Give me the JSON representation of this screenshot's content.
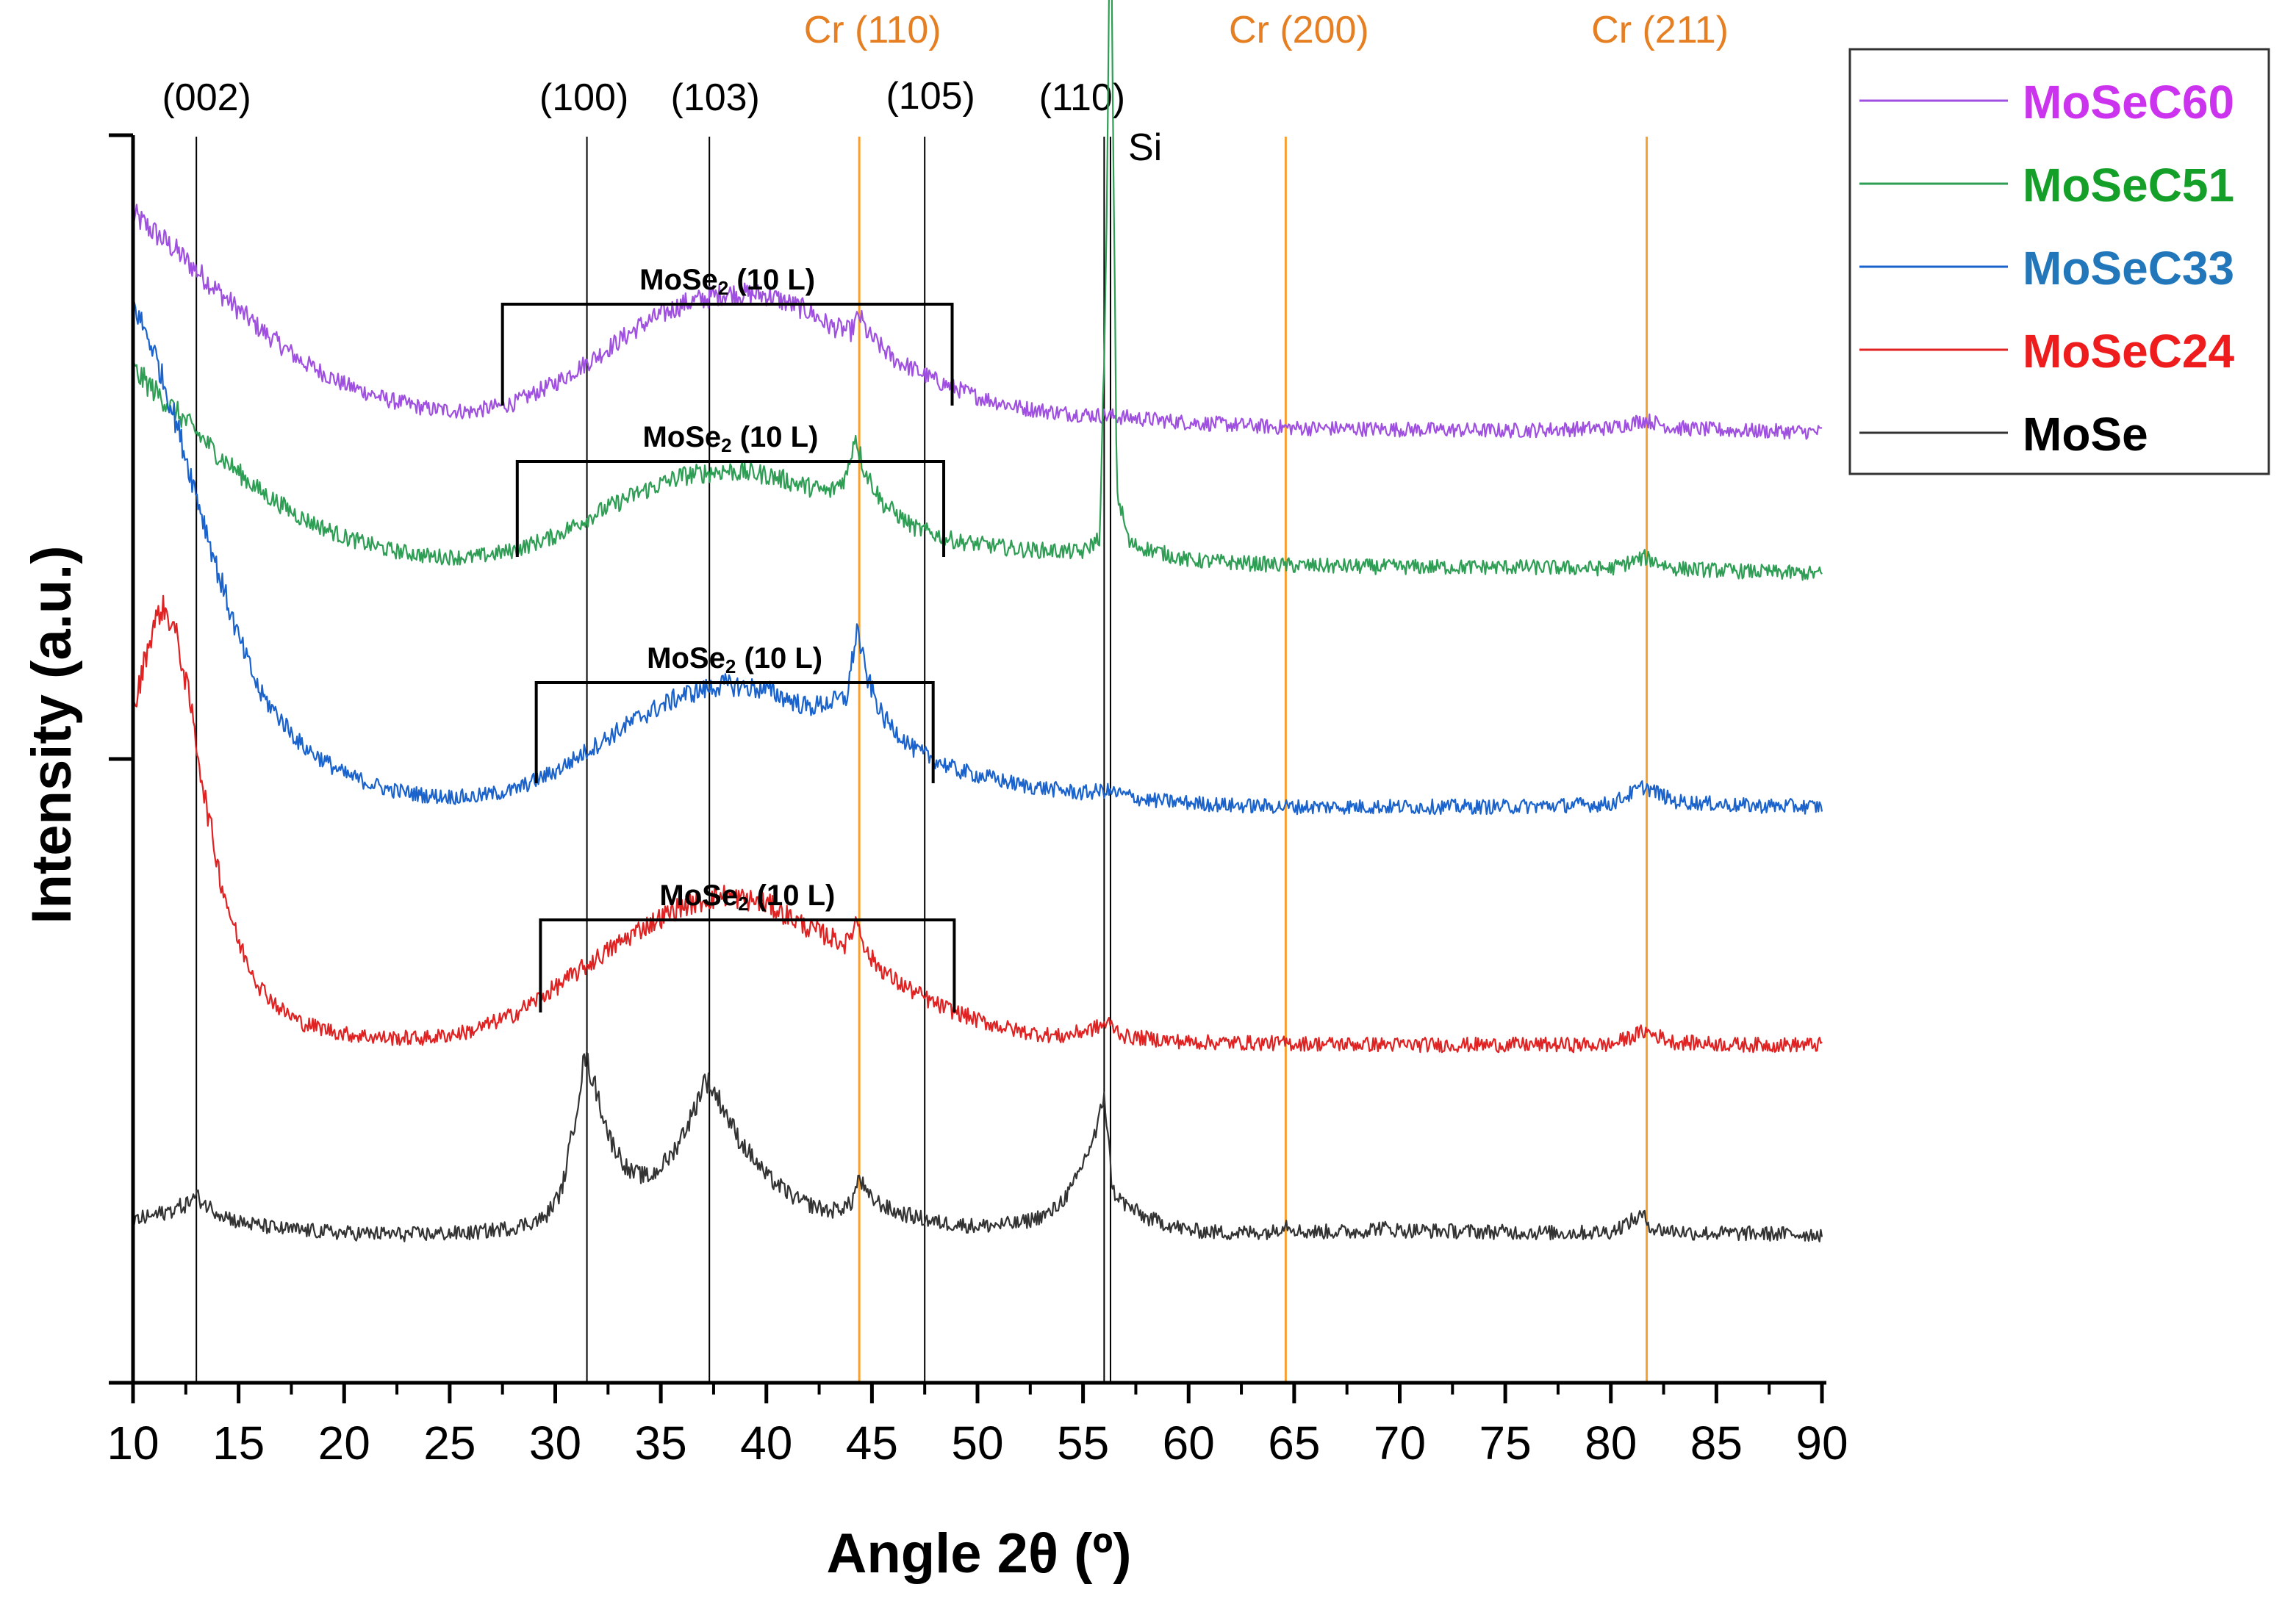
{
  "chart_data": {
    "type": "line",
    "title": "",
    "xlabel": "Angle 2θ (º)",
    "ylabel": "Intensity (a.u.)",
    "xlim": [
      10,
      90
    ],
    "x_ticks": [
      10,
      15,
      20,
      25,
      30,
      35,
      40,
      45,
      50,
      55,
      60,
      65,
      70,
      75,
      80,
      85,
      90
    ],
    "grid": false,
    "legend_position": "top-right outside",
    "colors": {
      "reference_line": "#000000",
      "cr_line": "#f5a030",
      "cr_label": "#e67e22"
    },
    "series": [
      {
        "name": "MoSeC60",
        "color": "#a050e0",
        "legend_color": "#cc33ee",
        "offset": 4.0,
        "points": [
          [
            10,
            1.6
          ],
          [
            12,
            1.34
          ],
          [
            14,
            1.04
          ],
          [
            16,
            0.76
          ],
          [
            18,
            0.52
          ],
          [
            20,
            0.35
          ],
          [
            22,
            0.24
          ],
          [
            24,
            0.17
          ],
          [
            26,
            0.15
          ],
          [
            28,
            0.21
          ],
          [
            30,
            0.36
          ],
          [
            32,
            0.56
          ],
          [
            34,
            0.78
          ],
          [
            36,
            0.94
          ],
          [
            38,
            1.02
          ],
          [
            40,
            1.01
          ],
          [
            42,
            0.89
          ],
          [
            43,
            0.78
          ],
          [
            44,
            0.74
          ],
          [
            44.4,
            0.86
          ],
          [
            44.8,
            0.72
          ],
          [
            46,
            0.54
          ],
          [
            48,
            0.38
          ],
          [
            50,
            0.26
          ],
          [
            52,
            0.18
          ],
          [
            54,
            0.14
          ],
          [
            56,
            0.12
          ],
          [
            60,
            0.07
          ],
          [
            65,
            0.03
          ],
          [
            70,
            0.02
          ],
          [
            75,
            0.01
          ],
          [
            80,
            0.03
          ],
          [
            81.6,
            0.09
          ],
          [
            83,
            0.03
          ],
          [
            86,
            0.01
          ],
          [
            90,
            0.0
          ]
        ]
      },
      {
        "name": "MoSeC51",
        "color": "#2e9e55",
        "legend_color": "#14a028",
        "offset": 3.0,
        "points": [
          [
            10,
            1.5
          ],
          [
            12,
            1.2
          ],
          [
            14,
            0.88
          ],
          [
            16,
            0.61
          ],
          [
            18,
            0.41
          ],
          [
            20,
            0.27
          ],
          [
            22,
            0.18
          ],
          [
            24,
            0.13
          ],
          [
            26,
            0.12
          ],
          [
            28,
            0.17
          ],
          [
            30,
            0.28
          ],
          [
            32,
            0.45
          ],
          [
            34,
            0.6
          ],
          [
            36,
            0.72
          ],
          [
            38,
            0.76
          ],
          [
            40,
            0.73
          ],
          [
            42,
            0.64
          ],
          [
            43,
            0.6
          ],
          [
            43.8,
            0.72
          ],
          [
            44.2,
            1.03
          ],
          [
            44.6,
            0.78
          ],
          [
            45.5,
            0.52
          ],
          [
            47,
            0.34
          ],
          [
            49,
            0.24
          ],
          [
            52,
            0.18
          ],
          [
            55,
            0.16
          ],
          [
            55.8,
            0.27
          ],
          [
            56.1,
            2.3
          ],
          [
            56.3,
            5.2
          ],
          [
            56.6,
            0.6
          ],
          [
            57.2,
            0.22
          ],
          [
            60,
            0.1
          ],
          [
            65,
            0.06
          ],
          [
            70,
            0.05
          ],
          [
            75,
            0.05
          ],
          [
            80,
            0.04
          ],
          [
            81.6,
            0.12
          ],
          [
            83,
            0.04
          ],
          [
            86,
            0.02
          ],
          [
            90,
            0.0
          ]
        ]
      },
      {
        "name": "MoSeC33",
        "color": "#1a62cc",
        "legend_color": "#2277bb",
        "offset": 2.0,
        "points": [
          [
            10,
            3.7
          ],
          [
            11,
            3.35
          ],
          [
            12,
            2.85
          ],
          [
            13,
            2.3
          ],
          [
            14,
            1.74
          ],
          [
            15,
            1.24
          ],
          [
            16,
            0.84
          ],
          [
            18,
            0.45
          ],
          [
            20,
            0.24
          ],
          [
            22,
            0.13
          ],
          [
            24,
            0.08
          ],
          [
            26,
            0.07
          ],
          [
            28,
            0.12
          ],
          [
            30,
            0.26
          ],
          [
            32,
            0.46
          ],
          [
            34,
            0.66
          ],
          [
            36,
            0.82
          ],
          [
            38,
            0.9
          ],
          [
            40,
            0.86
          ],
          [
            42,
            0.73
          ],
          [
            43.8,
            0.8
          ],
          [
            44.3,
            1.32
          ],
          [
            44.7,
            0.98
          ],
          [
            45.5,
            0.66
          ],
          [
            47,
            0.42
          ],
          [
            49,
            0.27
          ],
          [
            52,
            0.16
          ],
          [
            55,
            0.1
          ],
          [
            56,
            0.12
          ],
          [
            58,
            0.05
          ],
          [
            62,
            0.01
          ],
          [
            65,
            0.0
          ],
          [
            70,
            0.0
          ],
          [
            75,
            0.0
          ],
          [
            80,
            0.02
          ],
          [
            81.6,
            0.15
          ],
          [
            83,
            0.04
          ],
          [
            86,
            0.01
          ],
          [
            90,
            0.0
          ]
        ]
      },
      {
        "name": "MoSeC24",
        "color": "#e02222",
        "legend_color": "#ee1c1c",
        "offset": 1.0,
        "points": [
          [
            10,
            2.4
          ],
          [
            10.5,
            2.8
          ],
          [
            11,
            3.1
          ],
          [
            11.4,
            3.22
          ],
          [
            12,
            3.05
          ],
          [
            12.7,
            2.52
          ],
          [
            13.4,
            1.82
          ],
          [
            14.2,
            1.18
          ],
          [
            15,
            0.75
          ],
          [
            16,
            0.43
          ],
          [
            17,
            0.26
          ],
          [
            18,
            0.16
          ],
          [
            20,
            0.08
          ],
          [
            22,
            0.05
          ],
          [
            24,
            0.05
          ],
          [
            26,
            0.1
          ],
          [
            28,
            0.22
          ],
          [
            30,
            0.42
          ],
          [
            32,
            0.64
          ],
          [
            34,
            0.85
          ],
          [
            36,
            1.02
          ],
          [
            38,
            1.1
          ],
          [
            40,
            1.04
          ],
          [
            42,
            0.86
          ],
          [
            43.8,
            0.74
          ],
          [
            44.3,
            0.93
          ],
          [
            44.8,
            0.66
          ],
          [
            46,
            0.48
          ],
          [
            48,
            0.3
          ],
          [
            50,
            0.18
          ],
          [
            52,
            0.1
          ],
          [
            54,
            0.06
          ],
          [
            55.5,
            0.12
          ],
          [
            56.2,
            0.16
          ],
          [
            57,
            0.06
          ],
          [
            60,
            0.02
          ],
          [
            65,
            0.01
          ],
          [
            70,
            0.0
          ],
          [
            75,
            0.0
          ],
          [
            80,
            0.0
          ],
          [
            81.6,
            0.1
          ],
          [
            83,
            0.02
          ],
          [
            86,
            0.0
          ],
          [
            90,
            0.0
          ]
        ]
      },
      {
        "name": "MoSe",
        "color": "#333333",
        "legend_color": "#000000",
        "offset": 0.0,
        "points": [
          [
            10,
            0.1
          ],
          [
            11.5,
            0.16
          ],
          [
            12.5,
            0.22
          ],
          [
            13,
            0.28
          ],
          [
            13.6,
            0.2
          ],
          [
            15,
            0.09
          ],
          [
            17,
            0.04
          ],
          [
            20,
            0.01
          ],
          [
            23,
            0.0
          ],
          [
            26,
            0.01
          ],
          [
            28,
            0.05
          ],
          [
            29.5,
            0.12
          ],
          [
            30.3,
            0.32
          ],
          [
            30.9,
            0.82
          ],
          [
            31.4,
            1.32
          ],
          [
            31.9,
            1.08
          ],
          [
            32.6,
            0.7
          ],
          [
            33.5,
            0.46
          ],
          [
            34.5,
            0.42
          ],
          [
            35.5,
            0.58
          ],
          [
            36.5,
            0.88
          ],
          [
            37.1,
            1.15
          ],
          [
            37.8,
            0.98
          ],
          [
            38.7,
            0.7
          ],
          [
            40,
            0.43
          ],
          [
            41.5,
            0.25
          ],
          [
            43,
            0.17
          ],
          [
            44,
            0.22
          ],
          [
            44.4,
            0.42
          ],
          [
            44.8,
            0.28
          ],
          [
            46,
            0.17
          ],
          [
            48,
            0.09
          ],
          [
            50,
            0.06
          ],
          [
            52,
            0.08
          ],
          [
            53.5,
            0.16
          ],
          [
            54.5,
            0.34
          ],
          [
            55.2,
            0.6
          ],
          [
            55.7,
            0.78
          ],
          [
            56.0,
            1.05
          ],
          [
            56.4,
            0.32
          ],
          [
            57,
            0.22
          ],
          [
            58,
            0.12
          ],
          [
            60,
            0.03
          ],
          [
            62,
            0.01
          ],
          [
            64,
            0.02
          ],
          [
            64.6,
            0.08
          ],
          [
            65.3,
            0.02
          ],
          [
            68,
            0.02
          ],
          [
            69,
            0.05
          ],
          [
            70,
            0.03
          ],
          [
            74,
            0.02
          ],
          [
            78,
            0.01
          ],
          [
            80,
            0.02
          ],
          [
            81.5,
            0.14
          ],
          [
            82,
            0.04
          ],
          [
            84,
            0.01
          ],
          [
            90,
            0.0
          ]
        ]
      }
    ],
    "reference_lines": [
      {
        "x": 13.0,
        "label": "(002)",
        "style": "black"
      },
      {
        "x": 31.5,
        "label": "(100)",
        "style": "black"
      },
      {
        "x": 37.3,
        "label": "(103)",
        "style": "black"
      },
      {
        "x": 47.5,
        "label": "(105)",
        "style": "black"
      },
      {
        "x": 56.0,
        "label": "(110)",
        "style": "black"
      },
      {
        "x": 56.3,
        "label": "Si",
        "style": "black"
      },
      {
        "x": 44.4,
        "label": "Cr (110)",
        "style": "cr"
      },
      {
        "x": 64.6,
        "label": "Cr (200)",
        "style": "cr"
      },
      {
        "x": 81.7,
        "label": "Cr (211)",
        "style": "cr"
      }
    ],
    "annotations": [
      {
        "label": "MoSe",
        "sub": "2",
        "suffix": " (10 L)",
        "series": "MoSeC60",
        "x_start": 27.5,
        "x_end": 48.8
      },
      {
        "label": "MoSe",
        "sub": "2",
        "suffix": " (10 L)",
        "series": "MoSeC51",
        "x_start": 28.2,
        "x_end": 48.4
      },
      {
        "label": "MoSe",
        "sub": "2",
        "suffix": " (10 L)",
        "series": "MoSeC33",
        "x_start": 29.1,
        "x_end": 47.9
      },
      {
        "label": "MoSe",
        "sub": "2",
        "suffix": " (10 L)",
        "series": "MoSeC24",
        "x_start": 29.3,
        "x_end": 48.9
      }
    ]
  }
}
